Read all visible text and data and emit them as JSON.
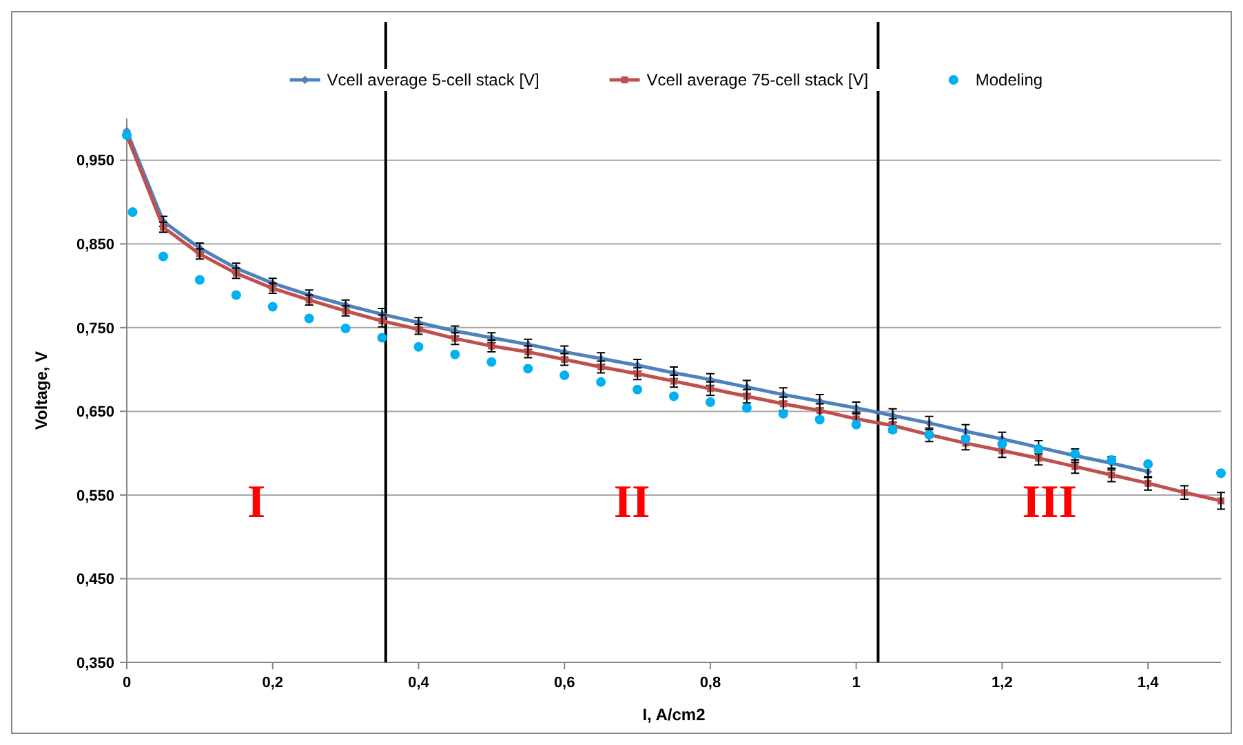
{
  "chart_data": {
    "type": "line",
    "xlabel": "I, A/cm2",
    "ylabel": "Voltage, V",
    "legend": "top",
    "grid": "y",
    "xlim": [
      0,
      1.5
    ],
    "ylim": [
      0.35,
      1.0
    ],
    "xticks": [
      0,
      {
        "value": 0.2,
        "label": "0,2"
      },
      {
        "value": 0.4,
        "label": "0,4"
      },
      {
        "value": 0.6,
        "label": "0,6"
      },
      {
        "value": 0.8,
        "label": "0,8"
      },
      1,
      {
        "value": 1.2,
        "label": "1,2"
      },
      {
        "value": 1.4,
        "label": "1,4"
      }
    ],
    "yticks": [
      {
        "value": 0.35,
        "label": "0,350"
      },
      {
        "value": 0.45,
        "label": "0,450"
      },
      {
        "value": 0.55,
        "label": "0,550"
      },
      {
        "value": 0.65,
        "label": "0,650"
      },
      {
        "value": 0.75,
        "label": "0,750"
      },
      {
        "value": 0.85,
        "label": "0,850"
      },
      {
        "value": 0.95,
        "label": "0,950"
      }
    ],
    "ref_lines": [
      {
        "axis": "x",
        "value": 0.355,
        "color": "#000000"
      },
      {
        "axis": "x",
        "value": 1.03,
        "color": "#000000"
      }
    ],
    "annotations": [
      "I",
      "II",
      "III"
    ],
    "series": [
      {
        "name": "Vcell average 5-cell stack [V]",
        "color": "#4f81bd",
        "marker": "diamond",
        "x": [
          0,
          0.05,
          0.1,
          0.15,
          0.2,
          0.25,
          0.3,
          0.35,
          0.4,
          0.45,
          0.5,
          0.55,
          0.6,
          0.65,
          0.7,
          0.75,
          0.8,
          0.85,
          0.9,
          0.95,
          1.0,
          1.05,
          1.1,
          1.15,
          1.2,
          1.25,
          1.3,
          1.35,
          1.4
        ],
        "values": [
          0.985,
          0.877,
          0.845,
          0.821,
          0.803,
          0.789,
          0.777,
          0.766,
          0.756,
          0.746,
          0.738,
          0.73,
          0.721,
          0.713,
          0.705,
          0.696,
          0.688,
          0.679,
          0.67,
          0.662,
          0.654,
          0.645,
          0.636,
          0.626,
          0.617,
          0.607,
          0.597,
          0.588,
          0.578
        ],
        "errors": [
          null,
          0.006,
          0.006,
          0.006,
          0.006,
          0.006,
          0.006,
          0.007,
          0.006,
          0.006,
          0.006,
          0.006,
          0.007,
          0.007,
          0.007,
          0.007,
          0.007,
          0.008,
          0.008,
          0.008,
          0.007,
          0.008,
          0.008,
          0.008,
          0.008,
          0.008,
          0.008,
          0.008,
          0.007
        ]
      },
      {
        "name": "Vcell average 75-cell stack [V]",
        "color": "#c0504d",
        "marker": "square",
        "x": [
          0,
          0.05,
          0.1,
          0.15,
          0.2,
          0.25,
          0.3,
          0.35,
          0.4,
          0.45,
          0.5,
          0.55,
          0.6,
          0.65,
          0.7,
          0.75,
          0.8,
          0.85,
          0.9,
          0.95,
          1.0,
          1.05,
          1.1,
          1.15,
          1.2,
          1.25,
          1.3,
          1.35,
          1.4,
          1.45,
          1.5
        ],
        "values": [
          0.98,
          0.87,
          0.838,
          0.815,
          0.797,
          0.783,
          0.77,
          0.758,
          0.748,
          0.737,
          0.728,
          0.721,
          0.712,
          0.703,
          0.695,
          0.686,
          0.677,
          0.668,
          0.659,
          0.651,
          0.641,
          0.633,
          0.622,
          0.612,
          0.603,
          0.594,
          0.584,
          0.574,
          0.564,
          0.553,
          0.543
        ],
        "errors": [
          null,
          0.006,
          0.006,
          0.006,
          0.006,
          0.006,
          0.006,
          0.007,
          0.006,
          0.007,
          0.007,
          0.007,
          0.007,
          0.007,
          0.007,
          0.007,
          0.008,
          0.008,
          0.008,
          0.008,
          0.008,
          0.008,
          0.008,
          0.008,
          0.008,
          0.008,
          0.008,
          0.008,
          0.008,
          0.008,
          0.01
        ]
      },
      {
        "name": "Modeling",
        "color": "#00b0f0",
        "type": "scatter",
        "marker": "circle",
        "x": [
          0,
          0.008,
          0.05,
          0.1,
          0.15,
          0.2,
          0.25,
          0.3,
          0.35,
          0.4,
          0.45,
          0.5,
          0.55,
          0.6,
          0.65,
          0.7,
          0.75,
          0.8,
          0.85,
          0.9,
          0.95,
          1.0,
          1.05,
          1.1,
          1.15,
          1.2,
          1.25,
          1.3,
          1.35,
          1.4,
          1.5
        ],
        "values": [
          0.98,
          0.888,
          0.835,
          0.807,
          0.789,
          0.775,
          0.761,
          0.749,
          0.738,
          0.727,
          0.718,
          0.709,
          0.701,
          0.693,
          0.685,
          0.676,
          0.668,
          0.661,
          0.654,
          0.647,
          0.64,
          0.634,
          0.628,
          0.622,
          0.617,
          0.611,
          0.605,
          0.599,
          0.592,
          0.587,
          0.576
        ]
      }
    ]
  }
}
